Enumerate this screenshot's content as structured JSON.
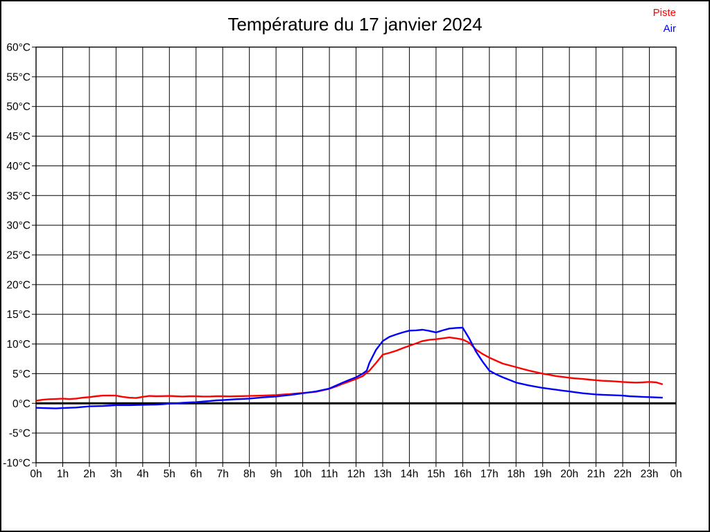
{
  "page": {
    "title": "Température du 17 janvier 2024"
  },
  "legend": {
    "items": [
      {
        "label": "Piste",
        "color": "#ff0000"
      },
      {
        "label": "Air",
        "color": "#0000ff"
      }
    ]
  },
  "chart_data": {
    "type": "line",
    "title": "Température du 17 janvier 2024",
    "xlabel": "",
    "ylabel": "",
    "xlim": [
      0,
      24
    ],
    "ylim": [
      -10,
      60
    ],
    "grid": true,
    "legend_position": "top-right",
    "x_ticks": {
      "values": [
        0,
        1,
        2,
        3,
        4,
        5,
        6,
        7,
        8,
        9,
        10,
        11,
        12,
        13,
        14,
        15,
        16,
        17,
        18,
        19,
        20,
        21,
        22,
        23,
        24
      ],
      "labels": [
        "0h",
        "1h",
        "2h",
        "3h",
        "4h",
        "5h",
        "6h",
        "7h",
        "8h",
        "9h",
        "10h",
        "11h",
        "12h",
        "13h",
        "14h",
        "15h",
        "16h",
        "17h",
        "18h",
        "19h",
        "20h",
        "21h",
        "22h",
        "23h",
        "0h"
      ]
    },
    "y_ticks": {
      "values": [
        60,
        55,
        50,
        45,
        40,
        35,
        30,
        25,
        20,
        15,
        10,
        5,
        0,
        -5,
        -10
      ],
      "labels": [
        "60°C",
        "55°C",
        "50°C",
        "45°C",
        "40°C",
        "35°C",
        "30°C",
        "25°C",
        "20°C",
        "15°C",
        "10°C",
        "5°C",
        "0°C",
        "-5°C",
        "-10°C"
      ]
    },
    "zero_line": {
      "value": 0,
      "color": "#000000",
      "width": 3
    },
    "series": [
      {
        "name": "Piste",
        "color": "#ff0000",
        "points": [
          [
            0,
            0.45
          ],
          [
            0.25,
            0.6
          ],
          [
            0.5,
            0.7
          ],
          [
            0.75,
            0.75
          ],
          [
            1,
            0.8
          ],
          [
            1.25,
            0.72
          ],
          [
            1.5,
            0.8
          ],
          [
            1.75,
            0.95
          ],
          [
            2,
            1.05
          ],
          [
            2.25,
            1.2
          ],
          [
            2.5,
            1.3
          ],
          [
            2.75,
            1.32
          ],
          [
            3,
            1.3
          ],
          [
            3.25,
            1.1
          ],
          [
            3.5,
            0.95
          ],
          [
            3.75,
            0.9
          ],
          [
            4,
            1.1
          ],
          [
            4.25,
            1.25
          ],
          [
            4.5,
            1.2
          ],
          [
            4.75,
            1.22
          ],
          [
            5,
            1.25
          ],
          [
            5.25,
            1.2
          ],
          [
            5.5,
            1.15
          ],
          [
            5.75,
            1.2
          ],
          [
            6,
            1.2
          ],
          [
            6.25,
            1.15
          ],
          [
            6.5,
            1.15
          ],
          [
            6.75,
            1.2
          ],
          [
            7,
            1.2
          ],
          [
            7.25,
            1.18
          ],
          [
            7.5,
            1.2
          ],
          [
            7.75,
            1.22
          ],
          [
            8,
            1.25
          ],
          [
            8.25,
            1.28
          ],
          [
            8.5,
            1.3
          ],
          [
            8.75,
            1.35
          ],
          [
            9,
            1.4
          ],
          [
            9.25,
            1.48
          ],
          [
            9.5,
            1.55
          ],
          [
            9.75,
            1.65
          ],
          [
            10,
            1.75
          ],
          [
            10.25,
            1.85
          ],
          [
            10.5,
            1.95
          ],
          [
            10.75,
            2.2
          ],
          [
            11,
            2.45
          ],
          [
            11.25,
            2.85
          ],
          [
            11.5,
            3.3
          ],
          [
            11.75,
            3.7
          ],
          [
            12,
            4.1
          ],
          [
            12.25,
            4.6
          ],
          [
            12.5,
            5.5
          ],
          [
            12.75,
            6.8
          ],
          [
            13,
            8.2
          ],
          [
            13.25,
            8.5
          ],
          [
            13.5,
            8.85
          ],
          [
            13.75,
            9.3
          ],
          [
            14,
            9.7
          ],
          [
            14.25,
            10.1
          ],
          [
            14.5,
            10.5
          ],
          [
            14.75,
            10.7
          ],
          [
            15,
            10.8
          ],
          [
            15.25,
            10.95
          ],
          [
            15.5,
            11.1
          ],
          [
            15.75,
            10.95
          ],
          [
            16,
            10.75
          ],
          [
            16.25,
            10.2
          ],
          [
            16.5,
            9.05
          ],
          [
            16.75,
            8.3
          ],
          [
            17,
            7.7
          ],
          [
            17.25,
            7.2
          ],
          [
            17.5,
            6.7
          ],
          [
            17.75,
            6.4
          ],
          [
            18,
            6.1
          ],
          [
            18.25,
            5.8
          ],
          [
            18.5,
            5.5
          ],
          [
            18.75,
            5.25
          ],
          [
            19,
            5.0
          ],
          [
            19.25,
            4.8
          ],
          [
            19.5,
            4.6
          ],
          [
            19.75,
            4.45
          ],
          [
            20,
            4.3
          ],
          [
            20.25,
            4.2
          ],
          [
            20.5,
            4.1
          ],
          [
            20.75,
            4.0
          ],
          [
            21,
            3.9
          ],
          [
            21.25,
            3.8
          ],
          [
            21.5,
            3.75
          ],
          [
            21.75,
            3.68
          ],
          [
            22,
            3.6
          ],
          [
            22.25,
            3.55
          ],
          [
            22.5,
            3.5
          ],
          [
            22.75,
            3.55
          ],
          [
            23,
            3.62
          ],
          [
            23.25,
            3.55
          ],
          [
            23.5,
            3.2
          ]
        ]
      },
      {
        "name": "Air",
        "color": "#0000ff",
        "points": [
          [
            0,
            -0.75
          ],
          [
            0.25,
            -0.8
          ],
          [
            0.5,
            -0.82
          ],
          [
            0.75,
            -0.85
          ],
          [
            1,
            -0.8
          ],
          [
            1.25,
            -0.75
          ],
          [
            1.5,
            -0.7
          ],
          [
            1.75,
            -0.6
          ],
          [
            2,
            -0.5
          ],
          [
            2.25,
            -0.47
          ],
          [
            2.5,
            -0.45
          ],
          [
            2.75,
            -0.38
          ],
          [
            3,
            -0.3
          ],
          [
            3.25,
            -0.3
          ],
          [
            3.5,
            -0.3
          ],
          [
            3.75,
            -0.28
          ],
          [
            4,
            -0.25
          ],
          [
            4.25,
            -0.22
          ],
          [
            4.5,
            -0.2
          ],
          [
            4.75,
            -0.15
          ],
          [
            5,
            -0.05
          ],
          [
            5.25,
            0.0
          ],
          [
            5.5,
            0.1
          ],
          [
            5.75,
            0.15
          ],
          [
            6,
            0.2
          ],
          [
            6.25,
            0.3
          ],
          [
            6.5,
            0.4
          ],
          [
            6.75,
            0.5
          ],
          [
            7,
            0.55
          ],
          [
            7.25,
            0.62
          ],
          [
            7.5,
            0.7
          ],
          [
            7.75,
            0.75
          ],
          [
            8,
            0.8
          ],
          [
            8.25,
            0.9
          ],
          [
            8.5,
            1.0
          ],
          [
            8.75,
            1.08
          ],
          [
            9,
            1.15
          ],
          [
            9.25,
            1.28
          ],
          [
            9.5,
            1.4
          ],
          [
            9.75,
            1.55
          ],
          [
            10,
            1.7
          ],
          [
            10.25,
            1.85
          ],
          [
            10.5,
            2.0
          ],
          [
            10.75,
            2.25
          ],
          [
            11,
            2.5
          ],
          [
            11.25,
            3.0
          ],
          [
            11.5,
            3.5
          ],
          [
            11.75,
            3.95
          ],
          [
            12,
            4.4
          ],
          [
            12.25,
            5.0
          ],
          [
            12.4,
            5.5
          ],
          [
            12.5,
            6.8
          ],
          [
            12.75,
            9.0
          ],
          [
            13,
            10.5
          ],
          [
            13.25,
            11.2
          ],
          [
            13.5,
            11.6
          ],
          [
            13.75,
            11.95
          ],
          [
            14,
            12.25
          ],
          [
            14.25,
            12.3
          ],
          [
            14.5,
            12.4
          ],
          [
            14.75,
            12.2
          ],
          [
            15,
            11.95
          ],
          [
            15.25,
            12.3
          ],
          [
            15.5,
            12.6
          ],
          [
            15.75,
            12.7
          ],
          [
            16,
            12.75
          ],
          [
            16.25,
            10.9
          ],
          [
            16.5,
            8.7
          ],
          [
            16.75,
            7.0
          ],
          [
            17,
            5.5
          ],
          [
            17.25,
            4.9
          ],
          [
            17.5,
            4.4
          ],
          [
            17.75,
            3.95
          ],
          [
            18,
            3.5
          ],
          [
            18.25,
            3.25
          ],
          [
            18.5,
            3.0
          ],
          [
            18.75,
            2.8
          ],
          [
            19,
            2.6
          ],
          [
            19.25,
            2.45
          ],
          [
            19.5,
            2.3
          ],
          [
            19.75,
            2.15
          ],
          [
            20,
            2.0
          ],
          [
            20.25,
            1.85
          ],
          [
            20.5,
            1.7
          ],
          [
            20.75,
            1.6
          ],
          [
            21,
            1.5
          ],
          [
            21.25,
            1.45
          ],
          [
            21.5,
            1.4
          ],
          [
            21.75,
            1.35
          ],
          [
            22,
            1.3
          ],
          [
            22.25,
            1.2
          ],
          [
            22.5,
            1.15
          ],
          [
            22.75,
            1.1
          ],
          [
            23,
            1.05
          ],
          [
            23.25,
            1.0
          ],
          [
            23.5,
            0.95
          ]
        ]
      }
    ]
  }
}
